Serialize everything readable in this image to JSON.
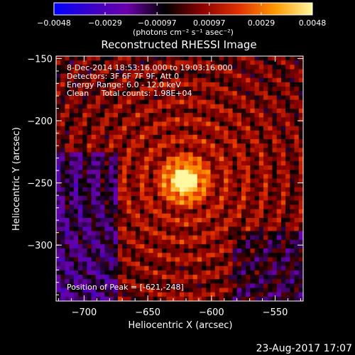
{
  "chart_data": {
    "type": "heatmap",
    "title": "Reconstructed RHESSI Image",
    "xlabel": "Heliocentric X (arcsec)",
    "ylabel": "Heliocentric Y (arcsec)",
    "xlim": [
      -722,
      -528
    ],
    "ylim": [
      -345,
      -148
    ],
    "xticks": [
      -700,
      -650,
      -600,
      -550
    ],
    "yticks": [
      -150,
      -200,
      -250,
      -300
    ],
    "xtick_labels": [
      "−700",
      "−650",
      "−600",
      "−550"
    ],
    "ytick_labels": [
      "−150",
      "−200",
      "−250",
      "−300"
    ],
    "peak": {
      "x": -621,
      "y": -248
    },
    "colorbar": {
      "min": -0.0048,
      "max": 0.0048,
      "ticks": [
        -0.0048,
        -0.0029,
        -0.00097,
        0.00097,
        0.0029,
        0.0048
      ],
      "tick_labels": [
        "−0.0048",
        "−0.0029",
        "−0.00097",
        "0.00097",
        "0.0029",
        "0.0048"
      ],
      "unit_label": "(photons cm⁻² s⁻¹ asec⁻²)",
      "colors": [
        "#0000ff",
        "#3a00c8",
        "#6a00a8",
        "#000000",
        "#8a0000",
        "#e03000",
        "#ff9a00",
        "#fff8a0"
      ]
    },
    "annotations": [
      "8-Dec-2014 18:53:16.000 to 19:03:16.000",
      "Detectors: 3F 6F 7F 9F, Att 0",
      "Energy Range: 6.0 - 12.0 keV",
      "Clean     Total counts: 1.98E+04"
    ],
    "peak_label": "Position of Peak = [-621,-248]",
    "grid": false,
    "legend": "none"
  },
  "footer": {
    "timestamp": "23-Aug-2017 17:07"
  }
}
